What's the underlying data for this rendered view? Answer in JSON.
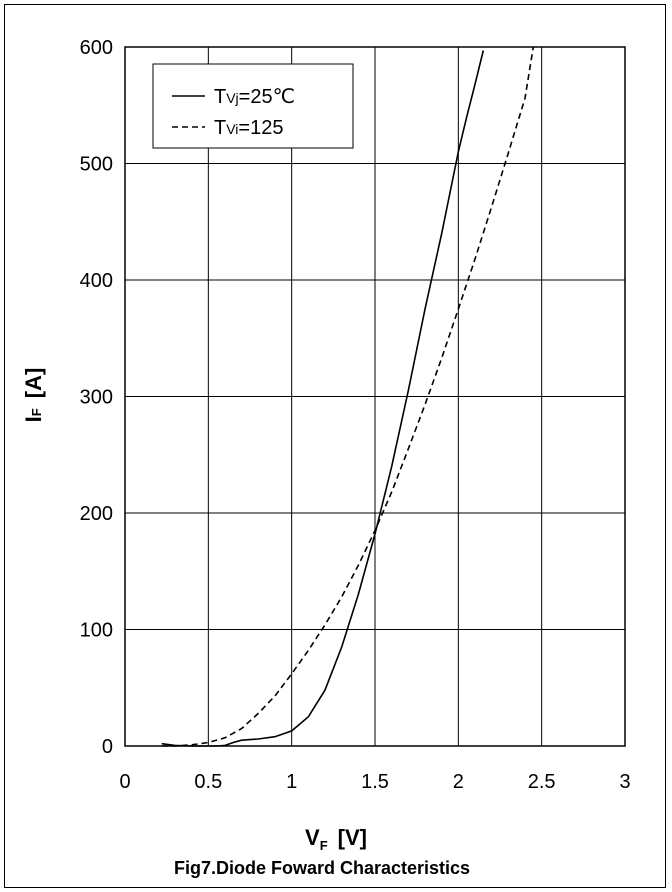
{
  "chart_data": {
    "type": "line",
    "title": "Fig7.Diode Foward Characteristics",
    "xlabel": {
      "main": "V",
      "sub": "F",
      "unit": "[V]"
    },
    "ylabel": {
      "main": "I",
      "sub": "F",
      "unit": "[A]"
    },
    "xlim": [
      0,
      3
    ],
    "ylim": [
      0,
      600
    ],
    "x_ticks": [
      "0",
      "0.5",
      "1",
      "1.5",
      "2",
      "2.5",
      "3"
    ],
    "y_ticks": [
      "0",
      "100",
      "200",
      "300",
      "400",
      "500",
      "600"
    ],
    "grid": true,
    "legend_position": "top-left",
    "series": [
      {
        "name": "TVj=25℃",
        "legend": {
          "main": "T",
          "sub": "Vj",
          "rest": "=25℃"
        },
        "style": "solid",
        "color": "#000000",
        "x": [
          0.22,
          0.3,
          0.4,
          0.5,
          0.55,
          0.6,
          0.65,
          0.7,
          0.8,
          0.9,
          1.0,
          1.1,
          1.2,
          1.3,
          1.4,
          1.5,
          1.6,
          1.7,
          1.8,
          1.9,
          2.0,
          2.05,
          2.1,
          2.15
        ],
        "y": [
          2,
          0.5,
          0,
          0,
          0,
          0.5,
          3,
          5,
          6,
          8,
          13,
          25,
          48,
          85,
          130,
          182,
          240,
          305,
          375,
          440,
          510,
          540,
          568,
          597
        ]
      },
      {
        "name": "TVi=125",
        "legend": {
          "main": "T",
          "sub": "Vi",
          "rest": "=125"
        },
        "style": "dashed",
        "color": "#000000",
        "x": [
          0.22,
          0.3,
          0.4,
          0.5,
          0.6,
          0.7,
          0.8,
          0.9,
          1.0,
          1.1,
          1.2,
          1.3,
          1.4,
          1.5,
          1.6,
          1.7,
          1.8,
          1.9,
          2.0,
          2.1,
          2.2,
          2.3,
          2.4,
          2.45
        ],
        "y": [
          0,
          0,
          1,
          3,
          7,
          15,
          28,
          43,
          62,
          82,
          104,
          128,
          155,
          185,
          218,
          255,
          293,
          333,
          375,
          418,
          463,
          509,
          556,
          600
        ]
      }
    ]
  }
}
